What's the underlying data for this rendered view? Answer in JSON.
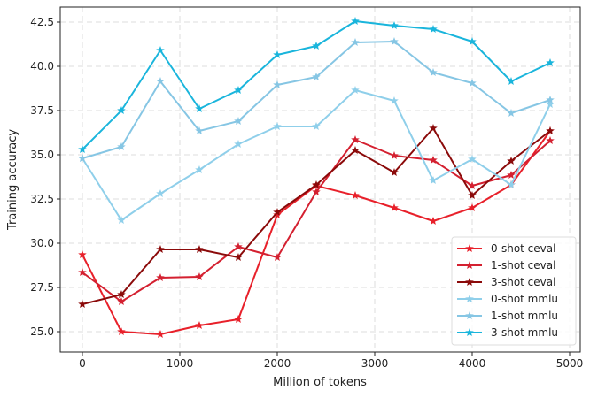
{
  "chart_data": {
    "type": "line",
    "title": "",
    "xlabel": "Million of tokens",
    "ylabel": "Training accuracy",
    "xlim": [
      -227,
      5109
    ],
    "ylim": [
      23.85,
      43.35
    ],
    "xticks": [
      0,
      1000,
      2000,
      3000,
      4000,
      5000
    ],
    "yticks": [
      25.0,
      27.5,
      30.0,
      32.5,
      35.0,
      37.5,
      40.0,
      42.5
    ],
    "xtick_labels": [
      "0",
      "1000",
      "2000",
      "3000",
      "4000",
      "5000"
    ],
    "ytick_labels": [
      "25.0",
      "27.5",
      "30.0",
      "32.5",
      "35.0",
      "37.5",
      "40.0",
      "42.5"
    ],
    "grid": true,
    "legend_position": "bottom-right",
    "marker": "star",
    "x": [
      0,
      400,
      800,
      1200,
      1600,
      2000,
      2400,
      2800,
      3200,
      3600,
      4000,
      4400,
      4800
    ],
    "series": [
      {
        "name": "0-shot ceval",
        "color": "#e8202a",
        "values": [
          29.35,
          25.0,
          24.85,
          25.35,
          25.7,
          31.6,
          33.25,
          32.7,
          32.0,
          31.25,
          32.0,
          33.3,
          36.35
        ]
      },
      {
        "name": "1-shot ceval",
        "color": "#d42030",
        "values": [
          28.35,
          26.7,
          28.05,
          28.1,
          29.8,
          29.2,
          32.9,
          35.85,
          34.95,
          34.7,
          33.25,
          33.85,
          35.8
        ]
      },
      {
        "name": "3-shot ceval",
        "color": "#8b0a0a",
        "values": [
          26.55,
          27.1,
          29.65,
          29.65,
          29.2,
          31.75,
          33.3,
          35.25,
          34.0,
          36.5,
          32.7,
          34.65,
          36.35
        ]
      },
      {
        "name": "0-shot mmlu",
        "color": "#8fcfea",
        "values": [
          34.8,
          31.3,
          32.8,
          34.15,
          35.6,
          36.6,
          36.6,
          38.65,
          38.05,
          33.55,
          34.75,
          33.3,
          37.85
        ]
      },
      {
        "name": "1-shot mmlu",
        "color": "#86c6e4",
        "values": [
          34.8,
          35.45,
          39.15,
          36.35,
          36.9,
          38.95,
          39.4,
          41.35,
          41.4,
          39.65,
          39.05,
          37.35,
          38.1
        ]
      },
      {
        "name": "3-shot mmlu",
        "color": "#1ab5dc",
        "values": [
          35.3,
          37.5,
          40.9,
          37.6,
          38.65,
          40.65,
          41.15,
          42.55,
          42.3,
          42.1,
          41.4,
          39.15,
          40.2
        ]
      }
    ]
  }
}
